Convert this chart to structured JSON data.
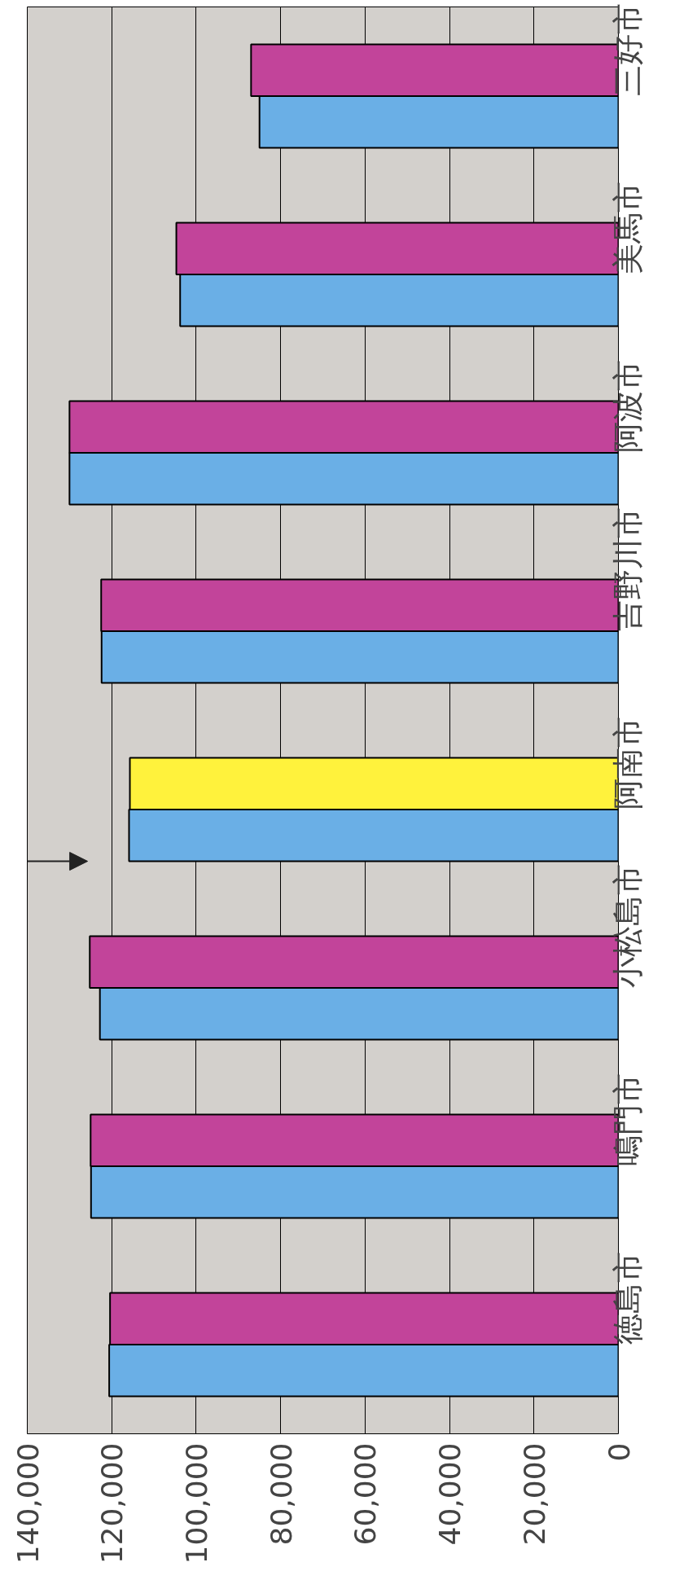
{
  "chart_data": {
    "type": "bar",
    "orientation": "horizontal",
    "categories": [
      "三好市",
      "美馬市",
      "阿波市",
      "吉野川市",
      "阿南市",
      "小松島市",
      "鳴門市",
      "徳島市"
    ],
    "series": [
      {
        "color": "#6aafe6",
        "values": [
          85000,
          103800,
          130000,
          122400,
          115900,
          122800,
          124900,
          120600
        ]
      },
      {
        "color": "#c2449a",
        "colors": [
          "#c2449a",
          "#c2449a",
          "#c2449a",
          "#c2449a",
          "#fff23c",
          "#c2449a",
          "#c2449a",
          "#c2449a"
        ],
        "values": [
          87000,
          104700,
          130000,
          122500,
          115700,
          125200,
          125000,
          120400
        ]
      }
    ],
    "xlim": [
      140000,
      0
    ],
    "xticks": [
      {
        "value": 140000,
        "label": "140,000"
      },
      {
        "value": 120000,
        "label": "120,000"
      },
      {
        "value": 100000,
        "label": "100,000"
      },
      {
        "value": 80000,
        "label": "80,000"
      },
      {
        "value": 60000,
        "label": "60,000"
      },
      {
        "value": 40000,
        "label": "40,000"
      },
      {
        "value": 20000,
        "label": "20,000"
      },
      0
    ],
    "grid": "x"
  }
}
